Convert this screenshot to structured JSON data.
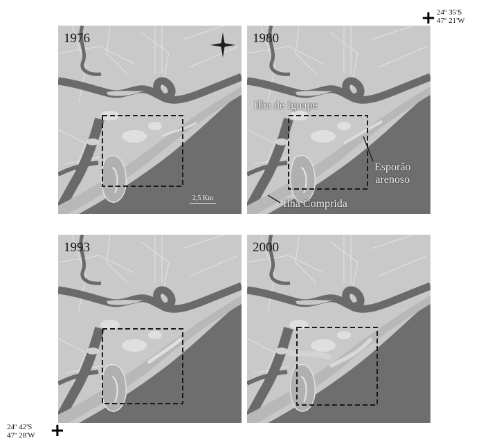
{
  "panels": [
    {
      "id": "1976",
      "year": "1976"
    },
    {
      "id": "1980",
      "year": "1980"
    },
    {
      "id": "1993",
      "year": "1993"
    },
    {
      "id": "2000",
      "year": "2000"
    }
  ],
  "labels": {
    "ilha_iguape": "Ilha de Iguape",
    "esporao_line1": "Esporão",
    "esporao_line2": "arenoso",
    "ilha_comprida": "Ilha Comprida"
  },
  "scale_bar": "2,5 Km",
  "coords": {
    "top_right_lat": "24º 35'S",
    "top_right_lon": "47º 21'W",
    "bottom_left_lat": "24º 42'S",
    "bottom_left_lon": "47º 28'W"
  },
  "icons": {
    "compass": "north-arrow-compass-icon",
    "corner_mark": "cross-icon"
  },
  "colors": {
    "land": "#c9c9c9",
    "sea": "#6e6e6e",
    "river": "#6a6a6a",
    "roads": "#e8e8e8",
    "study_box": "#1a1a1a"
  }
}
